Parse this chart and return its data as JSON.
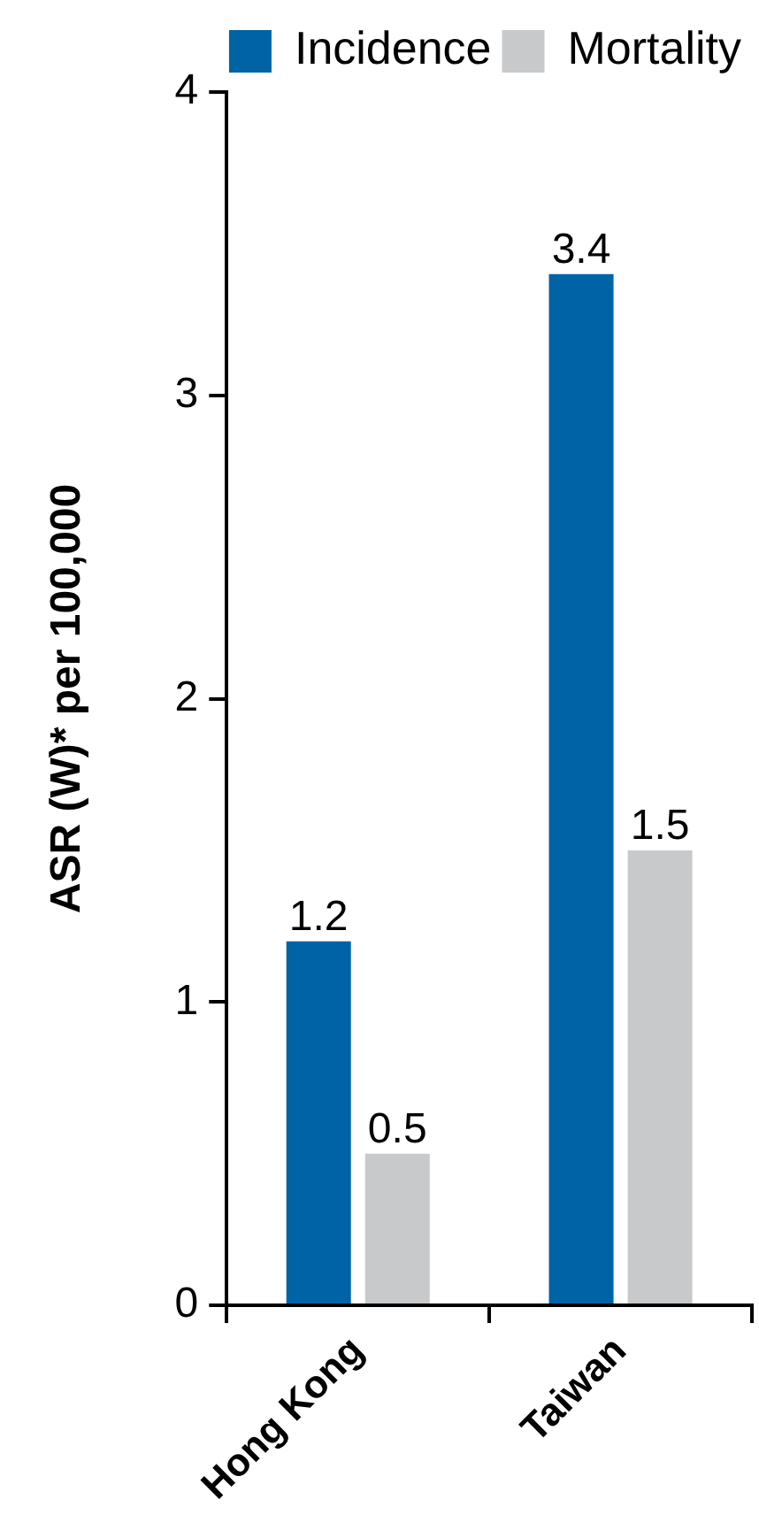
{
  "chart_data": {
    "type": "bar",
    "ylabel": "ASR (W)* per 100,000",
    "categories": [
      "Hong Kong",
      "Taiwan"
    ],
    "series": [
      {
        "name": "Incidence",
        "color": "#0063a6",
        "values": [
          1.2,
          3.4
        ]
      },
      {
        "name": "Mortality",
        "color": "#c8c9cb",
        "values": [
          0.5,
          1.5
        ]
      }
    ],
    "ylim": [
      0,
      4
    ],
    "yticks": [
      0,
      1,
      2,
      3,
      4
    ],
    "grid": false,
    "legend": "top right",
    "data_labels": true
  }
}
